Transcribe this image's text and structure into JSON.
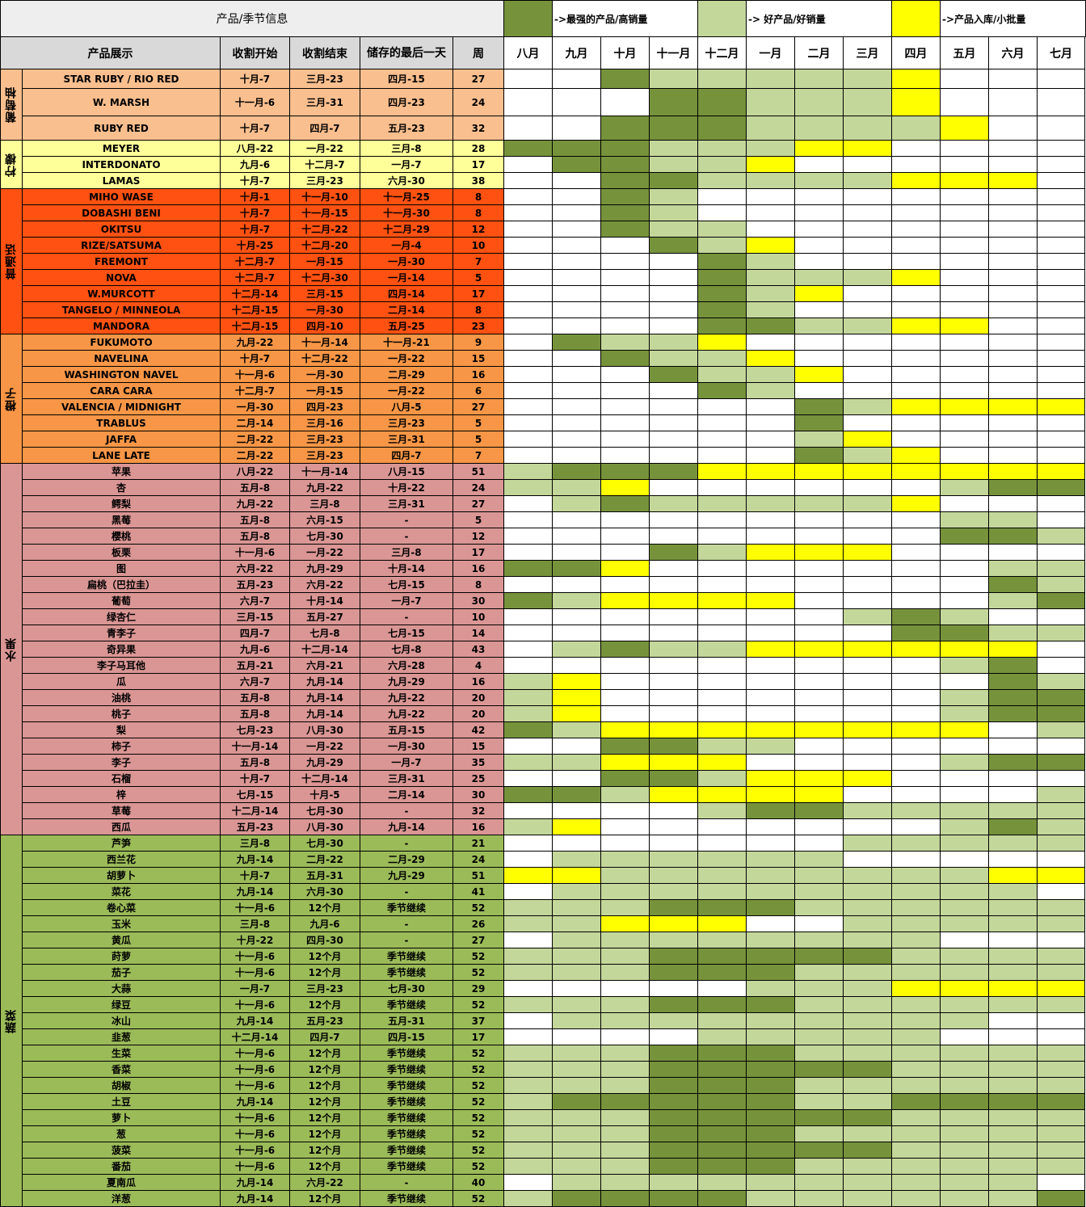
{
  "header": {
    "section_title": "产品/季节信息",
    "columns": [
      "产品展示",
      "收割开始",
      "收割结束",
      "储存的最后一天",
      "周"
    ],
    "months": [
      "八月",
      "九月",
      "十月",
      "十一月",
      "十二月",
      "一月",
      "二月",
      "三月",
      "四月",
      "五月",
      "六月",
      "七月"
    ]
  },
  "legend": [
    {
      "level": "D",
      "color": "#76933c",
      "label": "->最强的产品/高销量"
    },
    {
      "level": "L",
      "color": "#c4d79b",
      "label": "-> 好产品/好销量"
    },
    {
      "level": "Y",
      "color": "#ffff00",
      "label": "->产品入库/小批量"
    }
  ],
  "colors": {
    "D": "#76933c",
    "L": "#c4d79b",
    "Y": "#ffff00",
    "W": "#ffffff"
  },
  "groups": [
    {
      "name": "葡萄柚",
      "color": "#fabf8f",
      "rows": [
        {
          "name": "STAR RUBY / RIO RED",
          "start": "十月-7",
          "end": "三月-23",
          "storage": "四月-15",
          "weeks": "27",
          "months": "WWDLLLLLYWWW"
        },
        {
          "name": "W. MARSH",
          "start": "十一月-6",
          "end": "三月-31",
          "storage": "四月-23",
          "weeks": "24",
          "months": "WWWDDLLLYWWW"
        },
        {
          "name": "RUBY RED",
          "start": "十月-7",
          "end": "四月-7",
          "storage": "五月-23",
          "weeks": "32",
          "months": "WWDDDLLLLYWW"
        }
      ]
    },
    {
      "name": "柠檬",
      "color": "#ffff99",
      "rows": [
        {
          "name": "MEYER",
          "start": "八月-22",
          "end": "一月-22",
          "storage": "三月-8",
          "weeks": "28",
          "months": "DDDLLLYYWWWW"
        },
        {
          "name": "INTERDONATO",
          "start": "九月-6",
          "end": "十二月-7",
          "storage": "一月-7",
          "weeks": "17",
          "months": "WDDLLYWWWWWW"
        },
        {
          "name": "LAMAS",
          "start": "十月-7",
          "end": "三月-23",
          "storage": "六月-30",
          "weeks": "38",
          "months": "WWDDLLLLYYYW"
        }
      ]
    },
    {
      "name": "普通话",
      "color": "#ff5111",
      "rows": [
        {
          "name": "MIHO WASE",
          "start": "十月-1",
          "end": "十一月-10",
          "storage": "十一月-25",
          "weeks": "8",
          "months": "WWDLWWWWWWWW"
        },
        {
          "name": "DOBASHI BENI",
          "start": "十月-7",
          "end": "十一月-15",
          "storage": "十一月-30",
          "weeks": "8",
          "months": "WWDLWWWWWWWW"
        },
        {
          "name": "OKITSU",
          "start": "十月-7",
          "end": "十二月-22",
          "storage": "十二月-29",
          "weeks": "12",
          "months": "WWDLLWWWWWWW"
        },
        {
          "name": "RIZE/SATSUMA",
          "start": "十月-25",
          "end": "十二月-20",
          "storage": "一月-4",
          "weeks": "10",
          "months": "WWWDLYWWWWWW"
        },
        {
          "name": "FREMONT",
          "start": "十二月-7",
          "end": "一月-15",
          "storage": "一月-30",
          "weeks": "7",
          "months": "WWWWDLWWWWWW"
        },
        {
          "name": "NOVA",
          "start": "十二月-7",
          "end": "十二月-30",
          "storage": "一月-14",
          "weeks": "5",
          "months": "WWWWDLLLYWWW"
        },
        {
          "name": "W.MURCOTT",
          "start": "十二月-14",
          "end": "三月-15",
          "storage": "四月-14",
          "weeks": "17",
          "months": "WWWWDLYWWWWW"
        },
        {
          "name": "TANGELO / MINNEOLA",
          "start": "十二月-15",
          "end": "一月-30",
          "storage": "二月-14",
          "weeks": "8",
          "months": "WWWWDLWWWWWW"
        },
        {
          "name": "MANDORA",
          "start": "十二月-15",
          "end": "四月-10",
          "storage": "五月-25",
          "weeks": "23",
          "months": "WWWWDDLLYYWW"
        }
      ]
    },
    {
      "name": "橙子",
      "color": "#f79646",
      "rows": [
        {
          "name": "FUKUMOTO",
          "start": "九月-22",
          "end": "十一月-14",
          "storage": "十一月-21",
          "weeks": "9",
          "months": "WDLLYWWWWWWW"
        },
        {
          "name": "NAVELINA",
          "start": "十月-7",
          "end": "十二月-22",
          "storage": "一月-22",
          "weeks": "15",
          "months": "WWDLLYWWWWWW"
        },
        {
          "name": "WASHINGTON NAVEL",
          "start": "十一月-6",
          "end": "一月-30",
          "storage": "二月-29",
          "weeks": "16",
          "months": "WWWDLLYWWWWW"
        },
        {
          "name": "CARA CARA",
          "start": "十二月-7",
          "end": "一月-15",
          "storage": "一月-22",
          "weeks": "6",
          "months": "WWWWDLWWWWWW"
        },
        {
          "name": "VALENCIA / MIDNIGHT",
          "start": "一月-30",
          "end": "四月-23",
          "storage": "八月-5",
          "weeks": "27",
          "months": "WWWWWWDLYYYY"
        },
        {
          "name": "TRABLUS",
          "start": "二月-14",
          "end": "三月-16",
          "storage": "三月-23",
          "weeks": "5",
          "months": "WWWWWWDWWWWW"
        },
        {
          "name": "JAFFA",
          "start": "二月-22",
          "end": "三月-23",
          "storage": "三月-31",
          "weeks": "5",
          "months": "WWWWWWLYWWWW"
        },
        {
          "name": "LANE LATE",
          "start": "二月-22",
          "end": "三月-23",
          "storage": "四月-7",
          "weeks": "7",
          "months": "WWWWWWDLYWWW"
        }
      ]
    },
    {
      "name": "水果",
      "color": "#da9694",
      "rows": [
        {
          "name": "苹果",
          "start": "八月-22",
          "end": "十一月-14",
          "storage": "八月-15",
          "weeks": "51",
          "months": "LDDDYYYYYYYY"
        },
        {
          "name": "杏",
          "start": "五月-8",
          "end": "九月-22",
          "storage": "十月-22",
          "weeks": "24",
          "months": "LLYWWWWWWLDD"
        },
        {
          "name": "鳄梨",
          "start": "九月-22",
          "end": "三月-8",
          "storage": "三月-31",
          "weeks": "27",
          "months": "WLDLLLLLYWWW"
        },
        {
          "name": "黑莓",
          "start": "五月-8",
          "end": "六月-15",
          "storage": "-",
          "weeks": "5",
          "months": "WWWWWWWWWLLW"
        },
        {
          "name": "樱桃",
          "start": "五月-8",
          "end": "七月-30",
          "storage": "-",
          "weeks": "12",
          "months": "WWWWWWWWWDDL"
        },
        {
          "name": "板栗",
          "start": "十一月-6",
          "end": "一月-22",
          "storage": "三月-8",
          "weeks": "17",
          "months": "WWWDLYYYWWWW"
        },
        {
          "name": "图",
          "start": "六月-22",
          "end": "九月-29",
          "storage": "十月-14",
          "weeks": "16",
          "months": "DDYWWWWWWWLL"
        },
        {
          "name": "扁桃（巴拉圭）",
          "start": "五月-23",
          "end": "六月-22",
          "storage": "七月-15",
          "weeks": "8",
          "months": "WWWWWWWWWWDL"
        },
        {
          "name": "葡萄",
          "start": "六月-7",
          "end": "十月-14",
          "storage": "一月-7",
          "weeks": "30",
          "months": "DLYYYYWWWWLD"
        },
        {
          "name": "绿杏仁",
          "start": "三月-15",
          "end": "五月-27",
          "storage": "-",
          "weeks": "10",
          "months": "WWWWWWWLDLWW"
        },
        {
          "name": "青李子",
          "start": "四月-7",
          "end": "七月-8",
          "storage": "七月-15",
          "weeks": "14",
          "months": "WWWWWWWWDDLL"
        },
        {
          "name": "奇异果",
          "start": "九月-6",
          "end": "十二月-14",
          "storage": "七月-8",
          "weeks": "43",
          "months": "WLDLLYYYYYYW"
        },
        {
          "name": "李子马耳他",
          "start": "五月-21",
          "end": "六月-21",
          "storage": "六月-28",
          "weeks": "4",
          "months": "WWWWWWWWWLDW"
        },
        {
          "name": "瓜",
          "start": "六月-7",
          "end": "九月-14",
          "storage": "九月-29",
          "weeks": "16",
          "months": "LYWWWWWWWWDL"
        },
        {
          "name": "油桃",
          "start": "五月-8",
          "end": "九月-14",
          "storage": "九月-22",
          "weeks": "20",
          "months": "LYWWWWWWWLDD"
        },
        {
          "name": "桃子",
          "start": "五月-8",
          "end": "九月-14",
          "storage": "九月-22",
          "weeks": "20",
          "months": "LYWWWWWWWLDD"
        },
        {
          "name": "梨",
          "start": "七月-23",
          "end": "八月-30",
          "storage": "五月-15",
          "weeks": "42",
          "months": "DLYYYYYYYYWL"
        },
        {
          "name": "柿子",
          "start": "十一月-14",
          "end": "一月-22",
          "storage": "一月-30",
          "weeks": "15",
          "months": "WWDDLLWWWWWW"
        },
        {
          "name": "李子",
          "start": "五月-8",
          "end": "九月-29",
          "storage": "一月-7",
          "weeks": "35",
          "months": "LLYYYWWWWLDD"
        },
        {
          "name": "石榴",
          "start": "十月-7",
          "end": "十二月-14",
          "storage": "三月-31",
          "weeks": "25",
          "months": "WWDDLYYYWWWW"
        },
        {
          "name": "梓",
          "start": "七月-15",
          "end": "十月-5",
          "storage": "二月-14",
          "weeks": "30",
          "months": "DDLYYYYWWWWL"
        },
        {
          "name": "草莓",
          "start": "十二月-14",
          "end": "七月-30",
          "storage": "-",
          "weeks": "32",
          "months": "WWWWLDDLLLLL"
        },
        {
          "name": "西瓜",
          "start": "五月-23",
          "end": "八月-30",
          "storage": "九月-14",
          "weeks": "16",
          "months": "LYWWWWWWWLDL"
        }
      ]
    },
    {
      "name": "蔬菜",
      "color": "#9bbb59",
      "rows": [
        {
          "name": "芦笋",
          "start": "三月-8",
          "end": "七月-30",
          "storage": "-",
          "weeks": "21",
          "months": "WWWWWWWLLLLL"
        },
        {
          "name": "西兰花",
          "start": "九月-14",
          "end": "二月-22",
          "storage": "二月-29",
          "weeks": "24",
          "months": "WLLLLLLWWWWW"
        },
        {
          "name": "胡萝卜",
          "start": "十月-7",
          "end": "五月-31",
          "storage": "九月-29",
          "weeks": "51",
          "months": "YYLLLLLLLLYY"
        },
        {
          "name": "菜花",
          "start": "九月-14",
          "end": "六月-30",
          "storage": "-",
          "weeks": "41",
          "months": "WLLLLLLLLLLW"
        },
        {
          "name": "卷心菜",
          "start": "十一月-6",
          "end": "12个月",
          "storage": "季节继续",
          "weeks": "52",
          "months": "LLLDDDLLLLLL"
        },
        {
          "name": "玉米",
          "start": "三月-8",
          "end": "九月-6",
          "storage": "-",
          "weeks": "26",
          "months": "LLYYYWWLLLLL"
        },
        {
          "name": "黄瓜",
          "start": "十月-22",
          "end": "四月-30",
          "storage": "-",
          "weeks": "27",
          "months": "WLLLLLLLLWWW"
        },
        {
          "name": "莳萝",
          "start": "十一月-6",
          "end": "12个月",
          "storage": "季节继续",
          "weeks": "52",
          "months": "LLLDDDDDLLLL"
        },
        {
          "name": "茄子",
          "start": "十一月-6",
          "end": "12个月",
          "storage": "季节继续",
          "weeks": "52",
          "months": "LLLDDDLLLLLL"
        },
        {
          "name": "大蒜",
          "start": "一月-7",
          "end": "三月-23",
          "storage": "七月-30",
          "weeks": "29",
          "months": "WWWWWLLLYYYY"
        },
        {
          "name": "绿豆",
          "start": "十一月-6",
          "end": "12个月",
          "storage": "季节继续",
          "weeks": "52",
          "months": "LLLDDDLLLLLL"
        },
        {
          "name": "冰山",
          "start": "九月-14",
          "end": "五月-23",
          "storage": "五月-31",
          "weeks": "37",
          "months": "WLLLLLLLLLWW"
        },
        {
          "name": "韭葱",
          "start": "十二月-14",
          "end": "四月-7",
          "storage": "四月-15",
          "weeks": "17",
          "months": "WWWWLLLLLWWW"
        },
        {
          "name": "生菜",
          "start": "十一月-6",
          "end": "12个月",
          "storage": "季节继续",
          "weeks": "52",
          "months": "LLLDDDLLLLLL"
        },
        {
          "name": "香菜",
          "start": "十一月-6",
          "end": "12个月",
          "storage": "季节继续",
          "weeks": "52",
          "months": "LLLDDDDDLLLL"
        },
        {
          "name": "胡椒",
          "start": "十一月-6",
          "end": "12个月",
          "storage": "季节继续",
          "weeks": "52",
          "months": "LLLDDDLLLLLL"
        },
        {
          "name": "土豆",
          "start": "九月-14",
          "end": "12个月",
          "storage": "季节继续",
          "weeks": "52",
          "months": "LDDDDDLLDDDD"
        },
        {
          "name": "萝卜",
          "start": "十一月-6",
          "end": "12个月",
          "storage": "季节继续",
          "weeks": "52",
          "months": "LLLDDDDDLLLL"
        },
        {
          "name": "葱",
          "start": "十一月-6",
          "end": "12个月",
          "storage": "季节继续",
          "weeks": "52",
          "months": "LLLDDDLLLLLL"
        },
        {
          "name": "菠菜",
          "start": "十一月-6",
          "end": "12个月",
          "storage": "季节继续",
          "weeks": "52",
          "months": "LLLDDDDDLLLL"
        },
        {
          "name": "番茄",
          "start": "十一月-6",
          "end": "12个月",
          "storage": "季节继续",
          "weeks": "52",
          "months": "LLLDDDLLLLLL"
        },
        {
          "name": "夏南瓜",
          "start": "九月-14",
          "end": "六月-22",
          "storage": "-",
          "weeks": "40",
          "months": "WLLLLLLLLLLW"
        },
        {
          "name": "洋葱",
          "start": "九月-14",
          "end": "12个月",
          "storage": "季节继续",
          "weeks": "52",
          "months": "LDDDDLLLLLLD"
        }
      ]
    }
  ]
}
